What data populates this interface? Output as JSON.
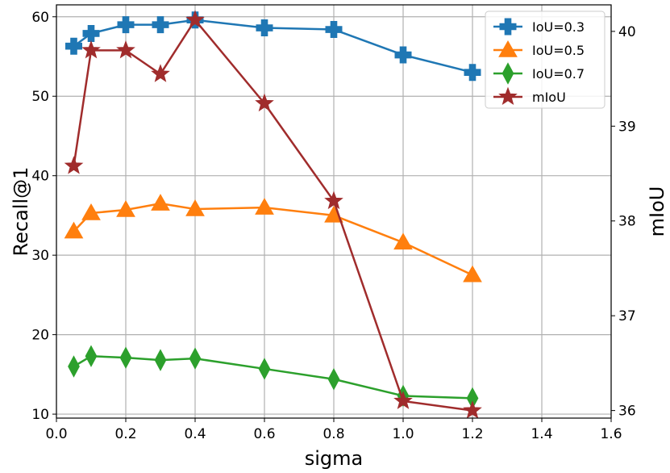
{
  "chart_data": {
    "type": "line",
    "title": "",
    "xlabel": "sigma",
    "ylabel": "Recall@1",
    "y2label": "mIoU",
    "xlim": [
      0.0,
      1.6
    ],
    "ylim": [
      9.5,
      61.5
    ],
    "y2lim": [
      35.92,
      40.28
    ],
    "xticks": [
      "0.0",
      "0.2",
      "0.4",
      "0.6",
      "0.8",
      "1.0",
      "1.2",
      "1.4",
      "1.6"
    ],
    "xtick_values": [
      0.0,
      0.2,
      0.4,
      0.6,
      0.8,
      1.0,
      1.2,
      1.4,
      1.6
    ],
    "yticks": [
      "10",
      "20",
      "30",
      "40",
      "50",
      "60"
    ],
    "ytick_values": [
      10,
      20,
      30,
      40,
      50,
      60
    ],
    "y2ticks": [
      "36",
      "37",
      "38",
      "39",
      "40"
    ],
    "y2tick_values": [
      36,
      37,
      38,
      39,
      40
    ],
    "grid": true,
    "legend_position": "top-right",
    "x": [
      0.05,
      0.1,
      0.2,
      0.3,
      0.4,
      0.6,
      0.8,
      1.0,
      1.2
    ],
    "series": [
      {
        "name": "IoU=0.3",
        "axis": "left",
        "marker": "plus",
        "color": "#1f77b4",
        "values": [
          56.3,
          57.9,
          59.0,
          59.0,
          59.6,
          58.6,
          58.4,
          55.2,
          53.0
        ]
      },
      {
        "name": "IoU=0.5",
        "axis": "left",
        "marker": "triangle",
        "color": "#ff7f0e",
        "values": [
          33.0,
          35.3,
          35.7,
          36.5,
          35.8,
          36.0,
          35.0,
          31.6,
          27.5
        ]
      },
      {
        "name": "IoU=0.7",
        "axis": "left",
        "marker": "diamond",
        "color": "#2ca02c",
        "values": [
          16.0,
          17.3,
          17.1,
          16.8,
          17.0,
          15.7,
          14.4,
          12.3,
          12.0
        ]
      },
      {
        "name": "mIoU",
        "axis": "right",
        "marker": "star",
        "color": "#a02c2c",
        "values": [
          38.58,
          39.8,
          39.8,
          39.55,
          40.12,
          39.24,
          38.21,
          36.1,
          36.0
        ]
      }
    ]
  }
}
